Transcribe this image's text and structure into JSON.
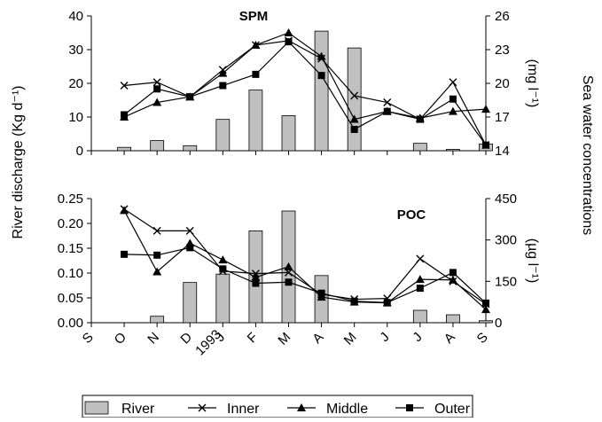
{
  "chart_data": [
    {
      "type": "bar",
      "title": "SPM",
      "categories": [
        "S",
        "O",
        "N",
        "D",
        "J",
        "F",
        "M",
        "A",
        "M",
        "J",
        "J",
        "A",
        "S"
      ],
      "ylabel": "River discharge (Kg d⁻¹)",
      "ylim": [
        0,
        40
      ],
      "yticks": [
        "0",
        "10",
        "20",
        "30",
        "40"
      ],
      "y2label": "(mg l⁻¹)",
      "y2lim": [
        14,
        26
      ],
      "y2ticks": [
        "14",
        "17",
        "20",
        "23",
        "26"
      ],
      "series": [
        {
          "name": "River",
          "axis": "left",
          "kind": "bar",
          "values": [
            null,
            1.0,
            3.0,
            1.5,
            9.3,
            18.0,
            10.4,
            35.5,
            30.5,
            null,
            2.2,
            0.4,
            2.0
          ]
        },
        {
          "name": "Inner",
          "axis": "right",
          "kind": "line",
          "marker": "x",
          "values": [
            null,
            19.8,
            20.1,
            18.8,
            21.2,
            23.4,
            23.8,
            22.2,
            18.9,
            18.3,
            16.8,
            20.1,
            14.5
          ]
        },
        {
          "name": "Middle",
          "axis": "right",
          "kind": "line",
          "marker": "triangle",
          "values": [
            null,
            17.0,
            18.3,
            18.8,
            20.9,
            23.4,
            24.5,
            22.4,
            16.8,
            17.5,
            16.9,
            17.5,
            17.7
          ]
        },
        {
          "name": "Outer",
          "axis": "right",
          "kind": "line",
          "marker": "square",
          "values": [
            null,
            17.2,
            19.5,
            18.8,
            19.8,
            20.8,
            23.7,
            20.7,
            15.9,
            17.5,
            16.8,
            18.6,
            14.5
          ]
        }
      ]
    },
    {
      "type": "bar",
      "title": "POC",
      "categories": [
        "S",
        "O",
        "N",
        "D",
        "J",
        "F",
        "M",
        "A",
        "M",
        "J",
        "J",
        "A",
        "S"
      ],
      "ylabel": "River discharge (Kg d⁻¹)",
      "ylim": [
        0,
        0.25
      ],
      "yticks": [
        "0.00",
        "0.05",
        "0.10",
        "0.15",
        "0.20",
        "0.25"
      ],
      "y2label": "(µg l⁻¹)",
      "y2lim": [
        0,
        450
      ],
      "y2ticks": [
        "0",
        "150",
        "300",
        "450"
      ],
      "series": [
        {
          "name": "River",
          "axis": "left",
          "kind": "bar",
          "values": [
            null,
            null,
            0.013,
            0.081,
            0.098,
            0.185,
            0.225,
            0.095,
            null,
            null,
            0.025,
            0.016,
            0.004
          ]
        },
        {
          "name": "Inner",
          "axis": "right",
          "kind": "line",
          "marker": "x",
          "values": [
            null,
            412,
            333,
            333,
            187,
            178,
            182,
            103,
            85,
            88,
            232,
            150,
            68
          ]
        },
        {
          "name": "Middle",
          "axis": "right",
          "kind": "line",
          "marker": "triangle",
          "values": [
            null,
            407,
            185,
            288,
            228,
            165,
            203,
            93,
            75,
            72,
            157,
            155,
            48
          ]
        },
        {
          "name": "Outer",
          "axis": "right",
          "kind": "line",
          "marker": "square",
          "values": [
            null,
            248,
            245,
            272,
            195,
            143,
            147,
            107,
            78,
            73,
            125,
            182,
            71
          ]
        }
      ]
    }
  ],
  "shared": {
    "left_axis_label": "River discharge (Kg d⁻¹)",
    "right_axis_label": "Sea water concentrations",
    "year_label": "1993",
    "month_labels": [
      "S",
      "O",
      "N",
      "D",
      "J",
      "F",
      "M",
      "A",
      "M",
      "J",
      "J",
      "A",
      "S"
    ]
  },
  "legend": {
    "items": [
      {
        "label": "River",
        "marker": "bar"
      },
      {
        "label": "Inner",
        "marker": "x"
      },
      {
        "label": "Middle",
        "marker": "triangle"
      },
      {
        "label": "Outer",
        "marker": "square"
      }
    ]
  },
  "colors": {
    "bar_fill": "#c0c0c0",
    "line": "#000000"
  }
}
